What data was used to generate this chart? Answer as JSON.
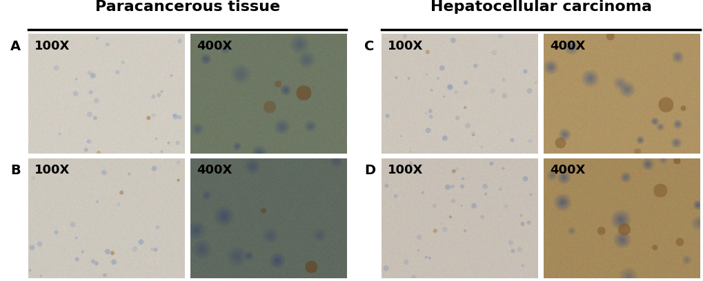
{
  "title_left": "Paracancerous tissue",
  "title_right": "Hepatocellular carcinoma",
  "background_color": "#ffffff",
  "title_fontsize": 16,
  "label_fontsize": 14,
  "mag_fontsize": 13,
  "panels": [
    {
      "row": 0,
      "col": 0,
      "group": 0,
      "mag": "100X",
      "label": "A",
      "bg": [
        210,
        205,
        195
      ],
      "cell_color": [
        140,
        155,
        185
      ],
      "stain_color": [
        160,
        120,
        70
      ],
      "cell_density": 0.25,
      "stain_density": 0.05
    },
    {
      "row": 0,
      "col": 1,
      "group": 0,
      "mag": "400X",
      "label": null,
      "bg": [
        110,
        120,
        100
      ],
      "cell_color": [
        60,
        75,
        110
      ],
      "stain_color": [
        110,
        75,
        40
      ],
      "cell_density": 0.35,
      "stain_density": 0.15
    },
    {
      "row": 1,
      "col": 0,
      "group": 0,
      "mag": "100X",
      "label": "B",
      "bg": [
        205,
        200,
        190
      ],
      "cell_color": [
        138,
        152,
        182
      ],
      "stain_color": [
        155,
        115,
        65
      ],
      "cell_density": 0.22,
      "stain_density": 0.06
    },
    {
      "row": 1,
      "col": 1,
      "group": 0,
      "mag": "400X",
      "label": null,
      "bg": [
        95,
        105,
        95
      ],
      "cell_color": [
        55,
        68,
        105
      ],
      "stain_color": [
        100,
        68,
        35
      ],
      "cell_density": 0.38,
      "stain_density": 0.12
    },
    {
      "row": 0,
      "col": 0,
      "group": 1,
      "mag": "100X",
      "label": "C",
      "bg": [
        205,
        198,
        188
      ],
      "cell_color": [
        135,
        150,
        178
      ],
      "stain_color": [
        165,
        125,
        75
      ],
      "cell_density": 0.28,
      "stain_density": 0.08
    },
    {
      "row": 0,
      "col": 1,
      "group": 1,
      "mag": "400X",
      "label": null,
      "bg": [
        175,
        148,
        100
      ],
      "cell_color": [
        70,
        85,
        125
      ],
      "stain_color": [
        130,
        90,
        45
      ],
      "cell_density": 0.4,
      "stain_density": 0.25
    },
    {
      "row": 1,
      "col": 0,
      "group": 1,
      "mag": "100X",
      "label": "D",
      "bg": [
        200,
        192,
        182
      ],
      "cell_color": [
        130,
        145,
        175
      ],
      "stain_color": [
        160,
        120,
        70
      ],
      "cell_density": 0.3,
      "stain_density": 0.1
    },
    {
      "row": 1,
      "col": 1,
      "group": 1,
      "mag": "400X",
      "label": null,
      "bg": [
        165,
        138,
        90
      ],
      "cell_color": [
        65,
        78,
        118
      ],
      "stain_color": [
        125,
        85,
        42
      ],
      "cell_density": 0.42,
      "stain_density": 0.28
    }
  ]
}
